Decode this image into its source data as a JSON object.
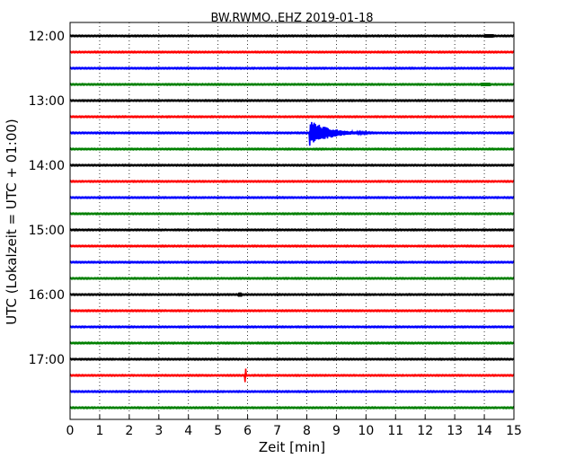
{
  "chart_data": {
    "type": "line",
    "title": "BW.RWMO..EHZ 2019-01-18",
    "xlabel": "Zeit  [min]",
    "ylabel": "UTC (Lokalzeit = UTC + 01:00)",
    "xlim": [
      0,
      15
    ],
    "x_ticks": [
      "0",
      "1",
      "2",
      "3",
      "4",
      "5",
      "6",
      "7",
      "8",
      "9",
      "10",
      "11",
      "12",
      "13",
      "14",
      "15"
    ],
    "y_tick_labels": [
      "12:00",
      "13:00",
      "14:00",
      "15:00",
      "16:00",
      "17:00"
    ],
    "grid": "vertical dotted at each minute",
    "trace_interval_min": 15,
    "trace_start_labels": [
      "12:00",
      "12:15",
      "12:30",
      "12:45",
      "13:00",
      "13:15",
      "13:30",
      "13:45",
      "14:00",
      "14:15",
      "14:30",
      "14:45",
      "15:00",
      "15:15",
      "15:30",
      "15:45",
      "16:00",
      "16:15",
      "16:30",
      "16:45",
      "17:00",
      "17:15",
      "17:30",
      "17:45"
    ],
    "colors": [
      "#000000",
      "#ff0000",
      "#0000ff",
      "#008000"
    ],
    "events": [
      {
        "trace": "13:30",
        "start_min": 8.1,
        "end_min": 11.2,
        "type": "earthquake",
        "peak_amplitude": 1.0
      },
      {
        "trace": "17:15",
        "start_min": 5.9,
        "end_min": 5.95,
        "type": "spike",
        "peak_amplitude": 0.5
      },
      {
        "trace": "16:00",
        "start_min": 5.7,
        "end_min": 5.8,
        "type": "spike",
        "peak_amplitude": 0.15
      },
      {
        "trace": "12:00",
        "start_min": 14.0,
        "end_min": 14.3,
        "type": "burst",
        "peak_amplitude": 0.12
      },
      {
        "trace": "12:45",
        "start_min": 13.9,
        "end_min": 14.2,
        "type": "burst",
        "peak_amplitude": 0.12
      }
    ]
  }
}
